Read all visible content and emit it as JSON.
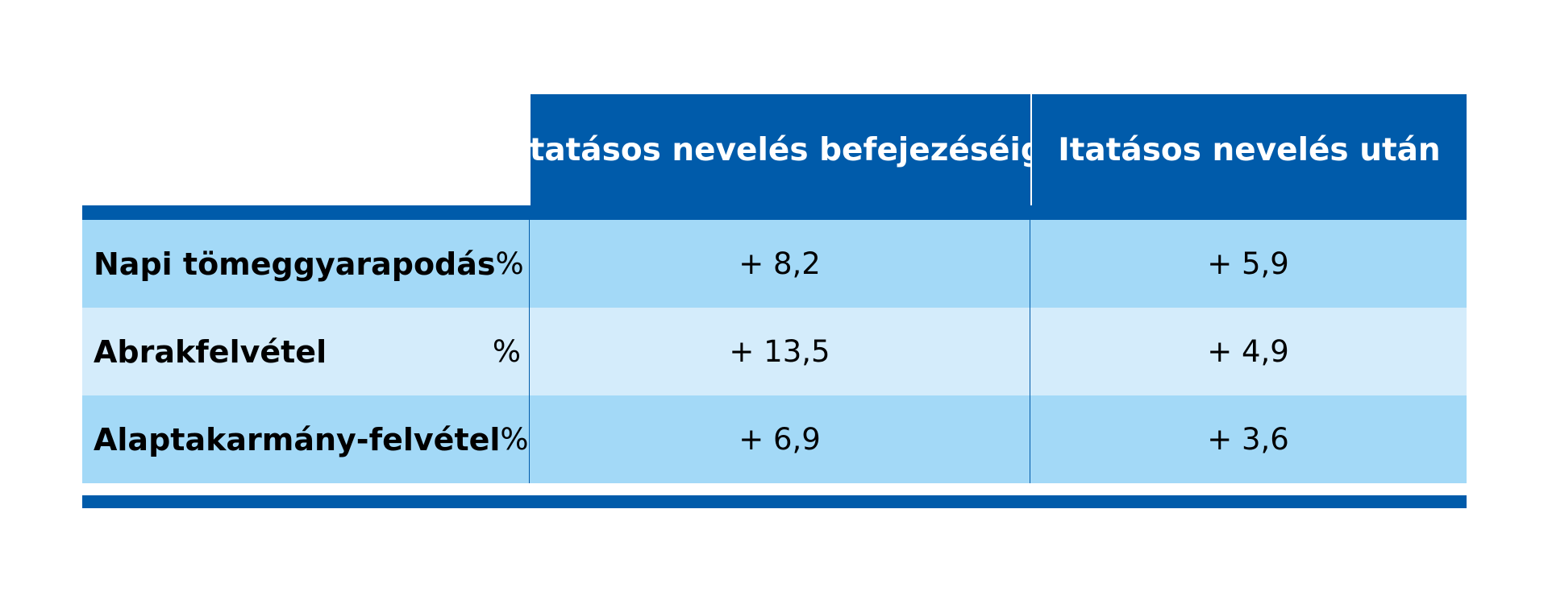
{
  "table": {
    "header": {
      "col1": "Itatásos nevelés befejezéséig",
      "col2": "Itatásos nevelés után"
    },
    "rows": [
      {
        "label": "Napi tömeggyarapodás",
        "unit": "%",
        "col1": "+ 8,2",
        "col2": "+ 5,9"
      },
      {
        "label": "Abrakfelvétel",
        "unit": "%",
        "col1": "+ 13,5",
        "col2": "+ 4,9"
      },
      {
        "label": "Alaptakarmány-felvétel",
        "unit": "%",
        "col1": "+ 6,9",
        "col2": "+ 3,6"
      }
    ]
  },
  "colors": {
    "header_blue": "#005BAA",
    "row_dark": "#A3D9F7",
    "row_light": "#D4ECFB"
  }
}
